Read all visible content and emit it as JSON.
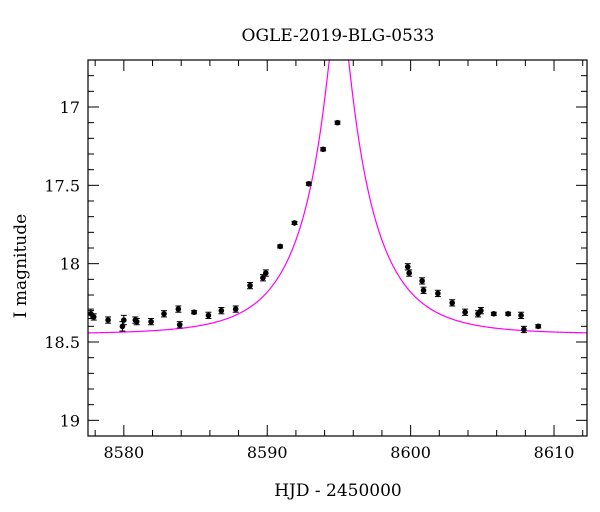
{
  "chart_data": {
    "type": "scatter",
    "title": "OGLE-2019-BLG-0533",
    "xlabel": "HJD - 2450000",
    "ylabel": "I magnitude",
    "xlim": [
      8577.5,
      8612.3
    ],
    "ylim": [
      19.1,
      16.7
    ],
    "y_inverted": true,
    "grid": false,
    "x_ticks": [
      8580,
      8590,
      8600,
      8610
    ],
    "x_tick_labels": [
      "8580",
      "8590",
      "8600",
      "8610"
    ],
    "y_ticks": [
      17,
      17.5,
      18,
      18.5,
      19
    ],
    "y_tick_labels": [
      "17",
      "17.5",
      "18",
      "18.5",
      "19"
    ],
    "series": [
      {
        "kind": "points",
        "color": "#000000",
        "x": [
          8577.7,
          8577.9,
          8578.9,
          8579.9,
          8580.0,
          8580.8,
          8580.9,
          8581.9,
          8582.8,
          8583.8,
          8583.9,
          8584.9,
          8585.9,
          8586.8,
          8587.8,
          8588.8,
          8589.7,
          8589.9,
          8590.9,
          8591.9,
          8592.9,
          8593.9,
          8594.9,
          8599.8,
          8599.9,
          8600.8,
          8600.9,
          8601.9,
          8602.9,
          8603.8,
          8604.7,
          8604.9,
          8605.8,
          8606.8,
          8607.7,
          8607.9,
          8608.9
        ],
        "y": [
          18.32,
          18.34,
          18.36,
          18.4,
          18.36,
          18.36,
          18.37,
          18.37,
          18.32,
          18.29,
          18.39,
          18.31,
          18.33,
          18.3,
          18.29,
          18.14,
          18.09,
          18.06,
          17.89,
          17.74,
          17.49,
          17.27,
          17.1,
          18.02,
          18.06,
          18.11,
          18.17,
          18.19,
          18.25,
          18.31,
          18.32,
          18.3,
          18.32,
          18.32,
          18.33,
          18.42,
          18.4
        ],
        "yerr": [
          0.03,
          0.02,
          0.02,
          0.03,
          0.03,
          0.02,
          0.02,
          0.02,
          0.02,
          0.02,
          0.02,
          0.01,
          0.02,
          0.02,
          0.02,
          0.02,
          0.02,
          0.02,
          0.01,
          0.01,
          0.01,
          0.01,
          0.01,
          0.02,
          0.02,
          0.02,
          0.02,
          0.02,
          0.02,
          0.02,
          0.02,
          0.02,
          0.01,
          0.01,
          0.02,
          0.02,
          0.01
        ]
      },
      {
        "kind": "model-line",
        "color": "#ff00ff",
        "model": {
          "t0": 8595.0,
          "tE": 4.6,
          "u0": 0.14,
          "baseline_mag": 18.45
        }
      }
    ]
  }
}
